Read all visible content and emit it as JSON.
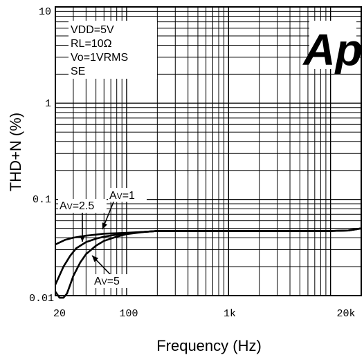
{
  "chart_data": {
    "type": "line",
    "x_scale": "log",
    "y_scale": "log",
    "xlim": [
      20,
      20000
    ],
    "ylim": [
      0.01,
      10
    ],
    "xlabel": "Frequency (Hz)",
    "ylabel": "THD+N (%)",
    "x_tick_labels": [
      {
        "value": 20,
        "label": "20"
      },
      {
        "value": 100,
        "label": "100"
      },
      {
        "value": 1000,
        "label": "1k"
      },
      {
        "value": 20000,
        "label": "20k"
      }
    ],
    "y_tick_labels": [
      {
        "value": 10,
        "label": "10"
      },
      {
        "value": 1,
        "label": "1"
      },
      {
        "value": 0.1,
        "label": "0.1"
      },
      {
        "value": 0.01,
        "label": "0.01"
      }
    ],
    "grid": true,
    "conditions": [
      "VDD=5V",
      "RL=10Ω",
      "Vo=1VRMS",
      "SE"
    ],
    "logo_text": "Ap",
    "series": [
      {
        "name": "AV=1",
        "label_main": "A",
        "label_sub": "V",
        "label_rest": "=1",
        "x": [
          20,
          25,
          30,
          40,
          50,
          60,
          80,
          100,
          150,
          200,
          500,
          1000,
          5000,
          10000,
          15000,
          18000,
          20000
        ],
        "y": [
          0.034,
          0.038,
          0.04,
          0.042,
          0.043,
          0.044,
          0.0445,
          0.045,
          0.046,
          0.047,
          0.047,
          0.047,
          0.047,
          0.047,
          0.0475,
          0.049,
          0.05
        ]
      },
      {
        "name": "AV=2.5",
        "label_main": "A",
        "label_sub": "V",
        "label_rest": "=2.5",
        "x": [
          20,
          24,
          28,
          32,
          40,
          50,
          60,
          80,
          100,
          150,
          200,
          500,
          1000,
          5000,
          10000,
          15000,
          18000,
          20000
        ],
        "y": [
          0.013,
          0.02,
          0.026,
          0.031,
          0.036,
          0.039,
          0.041,
          0.043,
          0.0445,
          0.046,
          0.047,
          0.047,
          0.047,
          0.047,
          0.047,
          0.0475,
          0.049,
          0.05
        ]
      },
      {
        "name": "AV=5",
        "label_main": "A",
        "label_sub": "V",
        "label_rest": "=5",
        "x": [
          20,
          22,
          24,
          26,
          28,
          30,
          35,
          40,
          50,
          60,
          80,
          100,
          150,
          200,
          500,
          1000,
          5000,
          10000,
          15000,
          18000,
          20000
        ],
        "y": [
          0.011,
          0.0095,
          0.0095,
          0.0105,
          0.013,
          0.016,
          0.022,
          0.027,
          0.033,
          0.037,
          0.041,
          0.0435,
          0.046,
          0.047,
          0.047,
          0.047,
          0.047,
          0.047,
          0.0475,
          0.049,
          0.05
        ]
      }
    ]
  }
}
